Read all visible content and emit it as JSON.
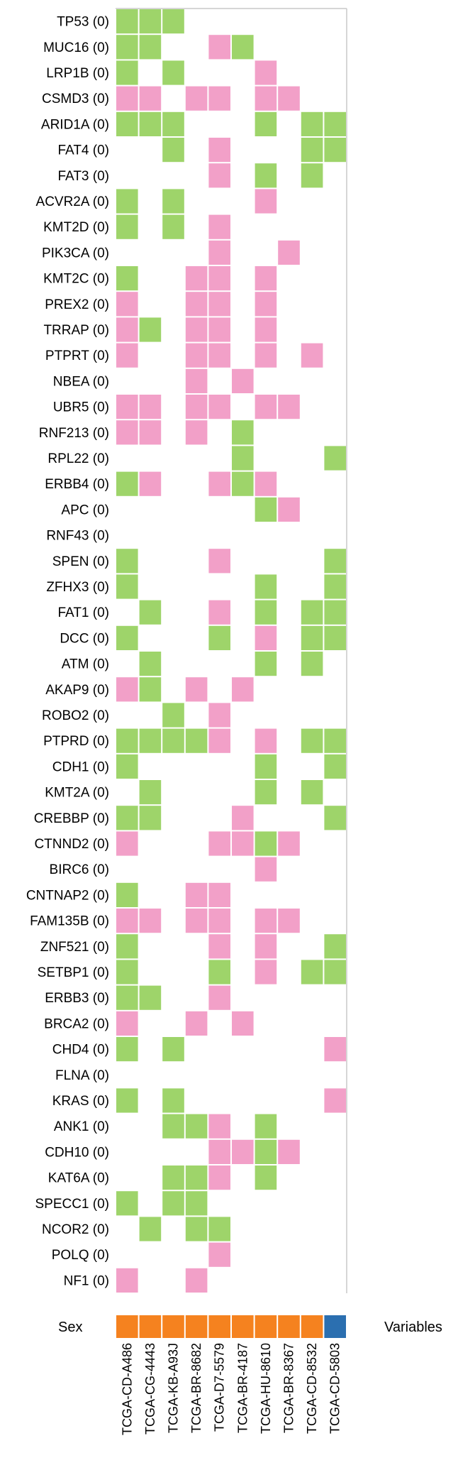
{
  "chart_data": {
    "type": "heatmap",
    "title": "",
    "genes": [
      "TP53 (0)",
      "MUC16 (0)",
      "LRP1B (0)",
      "CSMD3 (0)",
      "ARID1A (0)",
      "FAT4 (0)",
      "FAT3 (0)",
      "ACVR2A (0)",
      "KMT2D (0)",
      "PIK3CA (0)",
      "KMT2C (0)",
      "PREX2 (0)",
      "TRRAP (0)",
      "PTPRT (0)",
      "NBEA (0)",
      "UBR5 (0)",
      "RNF213 (0)",
      "RPL22 (0)",
      "ERBB4 (0)",
      "APC (0)",
      "RNF43 (0)",
      "SPEN (0)",
      "ZFHX3 (0)",
      "FAT1 (0)",
      "DCC (0)",
      "ATM (0)",
      "AKAP9 (0)",
      "ROBO2 (0)",
      "PTPRD (0)",
      "CDH1 (0)",
      "KMT2A (0)",
      "CREBBP (0)",
      "CTNND2 (0)",
      "BIRC6 (0)",
      "CNTNAP2 (0)",
      "FAM135B (0)",
      "ZNF521 (0)",
      "SETBP1 (0)",
      "ERBB3 (0)",
      "BRCA2 (0)",
      "CHD4 (0)",
      "FLNA (0)",
      "KRAS (0)",
      "ANK1 (0)",
      "CDH10 (0)",
      "KAT6A (0)",
      "SPECC1 (0)",
      "NCOR2 (0)",
      "POLQ (0)",
      "NF1 (0)"
    ],
    "samples": [
      "TCGA-CD-A486",
      "TCGA-CG-4443",
      "TCGA-KB-A93J",
      "TCGA-BR-8682",
      "TCGA-D7-5579",
      "TCGA-BR-4187",
      "TCGA-HU-8610",
      "TCGA-BR-8367",
      "TCGA-CD-8532",
      "TCGA-CD-5803"
    ],
    "legend": {
      "g": "green",
      "p": "pink"
    },
    "colors": {
      "g": "#9ed46a",
      "p": "#f2a0c8"
    },
    "matrix": [
      "ggg.......",
      "gg..pg....",
      "g.g...p...",
      "pp.pp.pp..",
      "ggg...g.gg",
      "..g.p...gg",
      "....p.g.g.",
      "g.g...p...",
      "g.g.p.....",
      "....p..p..",
      "g..pp.p...",
      "p..pp.p...",
      "pg.pp.p...",
      "p..pp.p.p.",
      "...p.p....",
      "pp.pp.pp..",
      "pp.p.g....",
      ".....g...g",
      "gp..pgp...",
      "......gp..",
      "..........",
      "g...p....g",
      "g.....g..g",
      ".g..p.g.gg",
      "g...g.p.gg",
      ".g....g.g.",
      "pg.p.p....",
      "..g.p.....",
      "ggggp.p.gg",
      "g.....g..g",
      ".g....g.g.",
      "gg...p...g",
      "p...ppgp..",
      "......p...",
      "g..pp.....",
      "pp.pp.pp..",
      "g...p.p..g",
      "g...g.p.gg",
      "gg..p.....",
      "p..p.p....",
      "g.g......p",
      "..........",
      "g.g......p",
      "..ggp.g...",
      "....ppgp..",
      "..ggp.g...",
      "g.gg......",
      ".g.gg.....",
      "....p.....",
      "p..p......"
    ],
    "annotation": {
      "label": "Sex",
      "variables_label": "Variables",
      "values": [
        "o",
        "o",
        "o",
        "o",
        "o",
        "o",
        "o",
        "o",
        "o",
        "b"
      ],
      "colors": {
        "o": "#f5821f",
        "b": "#2b6fb0"
      }
    }
  }
}
